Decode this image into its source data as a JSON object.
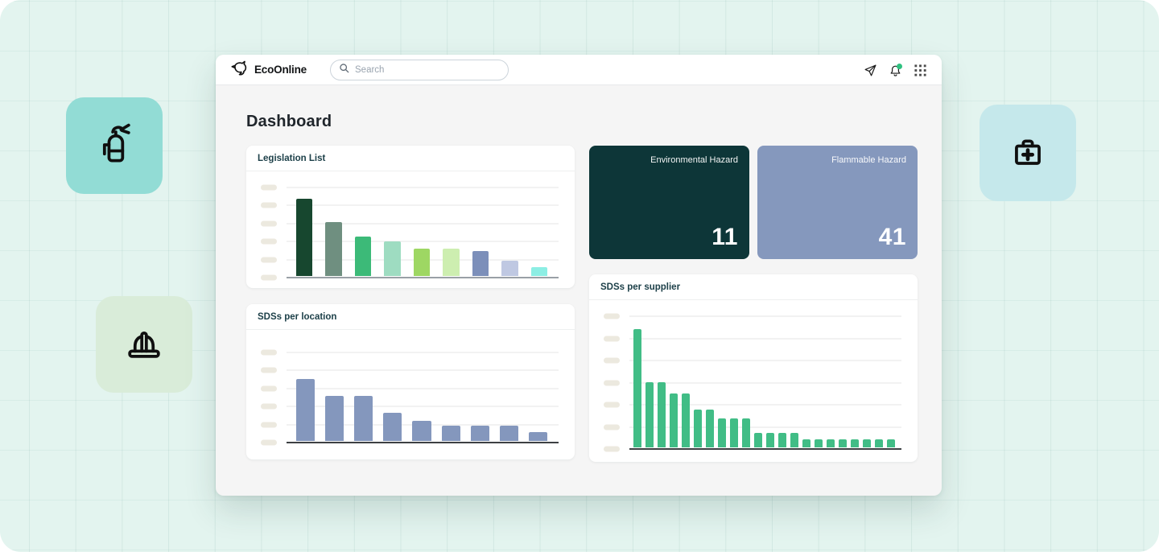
{
  "window": {
    "background_color": "#e3f4ef"
  },
  "decor_tiles": [
    {
      "icon": "fire-extinguisher-icon",
      "color": "#92dcd5"
    },
    {
      "icon": "hard-hat-icon",
      "color": "#d9ecd9"
    },
    {
      "icon": "first-aid-kit-icon",
      "color": "#c5e8eb"
    }
  ],
  "header": {
    "brand": "EcoOnline",
    "search_placeholder": "Search",
    "icons": [
      "send-icon",
      "bell-icon",
      "apps-grid-icon"
    ],
    "notification_dot_color": "#2fc180"
  },
  "page_title": "Dashboard",
  "stat_cards": [
    {
      "label": "Environmental Hazard",
      "value": "11",
      "background": "#0d3638"
    },
    {
      "label": "Flammable Hazard",
      "value": "41",
      "background": "#8598bd"
    }
  ],
  "chart_data": [
    {
      "type": "bar",
      "title": "Legislation List",
      "ylabel": "",
      "xlabel": "",
      "y_axis_style": "unlabeled skeleton pills",
      "units": "percent_of_axis_max",
      "values": [
        87,
        61,
        45,
        39,
        31,
        31,
        28,
        17,
        10
      ],
      "colors": [
        "#17472f",
        "#6f8f80",
        "#3cba78",
        "#9edcc1",
        "#9ed763",
        "#cdeeb0",
        "#7c8fba",
        "#bfc8e2",
        "#8ceee4"
      ],
      "gridline_count": 6,
      "baseline_color": "#9aa0a6",
      "grid": true,
      "legend": "none"
    },
    {
      "type": "bar",
      "title": "SDSs per location",
      "ylabel": "",
      "xlabel": "",
      "y_axis_style": "unlabeled skeleton pills",
      "units": "percent_of_axis_max",
      "values": [
        70,
        51,
        51,
        32,
        23,
        17,
        17,
        17,
        10
      ],
      "bar_color": "#8497bd",
      "gridline_count": 6,
      "baseline_color": "#3d4043",
      "grid": true,
      "legend": "none"
    },
    {
      "type": "bar",
      "title": "SDSs per supplier",
      "ylabel": "",
      "xlabel": "",
      "y_axis_style": "unlabeled skeleton pills",
      "units": "percent_of_axis_max",
      "values": [
        90,
        50,
        50,
        41,
        41,
        29,
        29,
        22,
        22,
        22,
        11,
        11,
        11,
        11,
        6,
        6,
        6,
        6,
        6,
        6,
        6,
        6
      ],
      "bar_color": "#41bd86",
      "gridline_count": 7,
      "baseline_color": "#3d4043",
      "grid": true,
      "legend": "none"
    }
  ],
  "theme": {
    "pill_color": "#ece9df",
    "gridline_color": "#e6e6e6",
    "card_title_color": "#1d4049",
    "panel_body_color": "#f5f5f5"
  }
}
